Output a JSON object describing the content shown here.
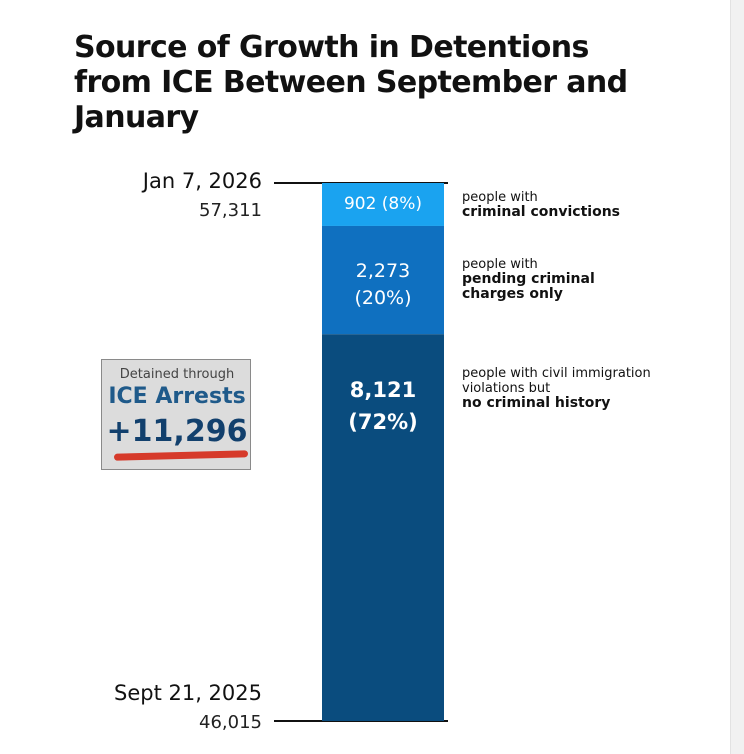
{
  "title": "Source of Growth  in Detentions from ICE Between September and January",
  "top_marker": {
    "date": "Jan 7, 2026",
    "count": "57,311"
  },
  "bottom_marker": {
    "date": "Sept 21, 2025",
    "count": "46,015"
  },
  "callout": {
    "caption": "Detained through",
    "heading": "ICE Arrests",
    "value": "+11,296",
    "underline_color": "#d63a2a"
  },
  "segments": [
    {
      "label_line1": "902  (8%)",
      "label_line2": "",
      "desc_plain": "people with",
      "desc_bold": "criminal convictions",
      "color": "#1aa3f0"
    },
    {
      "label_line1": "2,273",
      "label_line2": "(20%)",
      "desc_plain": "people with",
      "desc_bold": "pending criminal charges only",
      "color": "#0f70c0"
    },
    {
      "label_line1": "8,121",
      "label_line2": "(72%)",
      "desc_plain": "people with civil immigration violations but",
      "desc_bold": "no criminal history",
      "color": "#0a4c7e"
    }
  ],
  "chart_data": {
    "type": "bar",
    "stacked": true,
    "title": "Source of Growth  in Detentions from ICE Between September and January",
    "baseline": {
      "label": "Sept 21, 2025",
      "value": 46015
    },
    "top": {
      "label": "Jan 7, 2026",
      "value": 57311
    },
    "total_growth": 11296,
    "series": [
      {
        "name": "people with civil immigration violations but no criminal history",
        "value": 8121,
        "percent": 72
      },
      {
        "name": "people with pending criminal charges only",
        "value": 2273,
        "percent": 20
      },
      {
        "name": "people with criminal convictions",
        "value": 902,
        "percent": 8
      }
    ],
    "ylim": [
      46015,
      57311
    ],
    "grid": false,
    "legend": "right"
  }
}
